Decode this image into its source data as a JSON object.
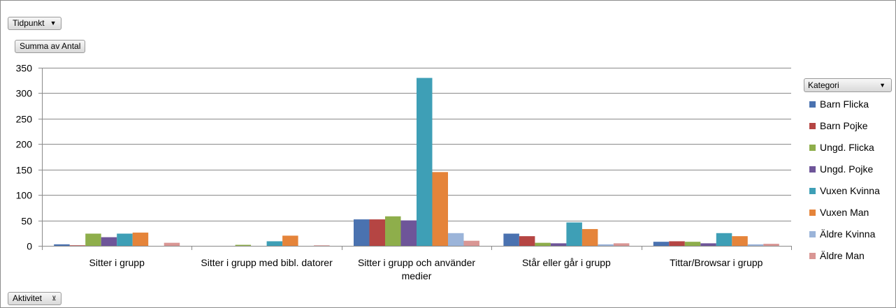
{
  "controls": {
    "tidpunkt": "Tidpunkt",
    "summa": "Summa av Antal",
    "kategori": "Kategori",
    "aktivitet": "Aktivitet",
    "dropdown_icon": "▼",
    "filter_icon": "⊻"
  },
  "chart_data": {
    "type": "bar",
    "categories": [
      "Sitter i grupp",
      "Sitter i grupp med bibl. datorer",
      "Sitter i grupp och använder medier",
      "Står eller går i grupp",
      "Tittar/Browsar i grupp"
    ],
    "category_lines": [
      [
        "Sitter i grupp"
      ],
      [
        "Sitter i grupp med bibl. datorer"
      ],
      [
        "Sitter i grupp och använder",
        "medier"
      ],
      [
        "Står eller går i grupp"
      ],
      [
        "Tittar/Browsar i grupp"
      ]
    ],
    "ylim": [
      0,
      350
    ],
    "yticks": [
      0,
      50,
      100,
      150,
      200,
      250,
      300,
      350
    ],
    "grid": true,
    "legend_position": "right",
    "series": [
      {
        "name": "Barn Flicka",
        "color": "#4a72b0",
        "values": [
          3,
          0,
          52,
          24,
          8
        ]
      },
      {
        "name": "Barn Pojke",
        "color": "#b54543",
        "values": [
          1,
          0,
          52,
          19,
          9
        ]
      },
      {
        "name": "Ungd. Flicka",
        "color": "#8eae4b",
        "values": [
          24,
          2,
          58,
          6,
          8
        ]
      },
      {
        "name": "Ungd. Pojke",
        "color": "#6e5599",
        "values": [
          17,
          0,
          50,
          5,
          5
        ]
      },
      {
        "name": "Vuxen Kvinna",
        "color": "#3e9fb6",
        "values": [
          24,
          9,
          330,
          46,
          25
        ]
      },
      {
        "name": "Vuxen Man",
        "color": "#e5843a",
        "values": [
          26,
          20,
          145,
          33,
          19
        ]
      },
      {
        "name": "Äldre Kvinna",
        "color": "#9bb4d9",
        "values": [
          0,
          0,
          25,
          3,
          3
        ]
      },
      {
        "name": "Äldre Man",
        "color": "#d99694",
        "values": [
          6,
          1,
          10,
          5,
          4
        ]
      }
    ]
  }
}
